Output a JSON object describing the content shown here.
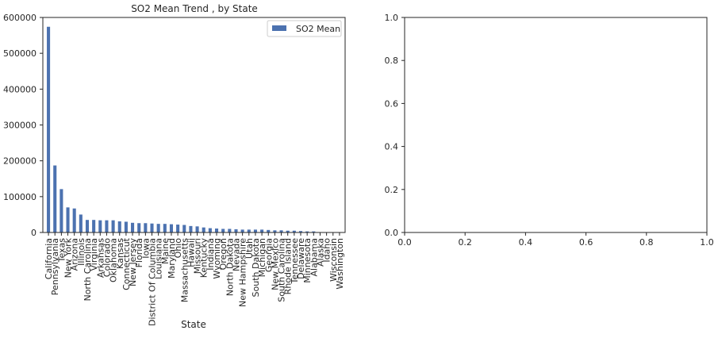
{
  "chart_data": [
    {
      "type": "bar",
      "title": "SO2 Mean Trend , by State",
      "xlabel": "State",
      "ylabel": "",
      "ylim": [
        0,
        600000
      ],
      "yticks": [
        0,
        100000,
        200000,
        300000,
        400000,
        500000,
        600000
      ],
      "grid": false,
      "legend_position": "top-right",
      "bar_color": "#4c72b0",
      "categories": [
        "California",
        "Pennsylvania",
        "Texas",
        "New York",
        "Arizona",
        "Illinois",
        "North Carolina",
        "Virginia",
        "Arkansas",
        "Colorado",
        "Oklahoma",
        "Kansas",
        "Connecticut",
        "New Jersey",
        "Florida",
        "Iowa",
        "District Of Columbia",
        "Louisiana",
        "Maine",
        "Maryland",
        "Ohio",
        "Massachusetts",
        "Hawaii",
        "Missouri",
        "Kentucky",
        "Indiana",
        "Wyoming",
        "Oregon",
        "North Dakota",
        "Nevada",
        "New Hampshire",
        "Utah",
        "South Dakota",
        "Michigan",
        "Georgia",
        "New Mexico",
        "South Carolina",
        "Rhode Island",
        "Tennessee",
        "Delaware",
        "Minnesota",
        "Alabama",
        "Alaska",
        "Idaho",
        "Wisconsin",
        "Washington"
      ],
      "series": [
        {
          "name": "SO2 Mean",
          "values": [
            574000,
            187000,
            121000,
            70000,
            67000,
            50000,
            35000,
            35000,
            34000,
            34000,
            34000,
            31000,
            30000,
            27000,
            26000,
            26000,
            25000,
            24000,
            24000,
            23000,
            22000,
            21000,
            18000,
            17000,
            14000,
            12000,
            11000,
            10000,
            10000,
            9000,
            8000,
            8000,
            8000,
            8000,
            7000,
            6000,
            6000,
            5000,
            5000,
            4000,
            3000,
            3000,
            1000,
            800,
            600,
            400
          ]
        }
      ]
    },
    {
      "type": "line",
      "title": "",
      "xlabel": "",
      "ylabel": "",
      "xlim": [
        0,
        1
      ],
      "ylim": [
        0,
        1
      ],
      "xticks": [
        "0.0",
        "0.2",
        "0.4",
        "0.6",
        "0.8",
        "1.0"
      ],
      "yticks": [
        "0.0",
        "0.2",
        "0.4",
        "0.6",
        "0.8",
        "1.0"
      ],
      "grid": false,
      "series": []
    }
  ]
}
